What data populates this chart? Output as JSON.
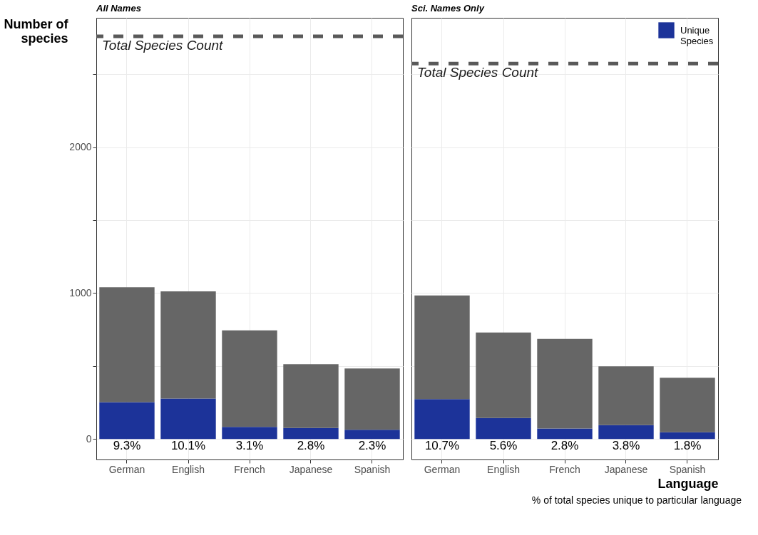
{
  "chart_data": [
    {
      "type": "bar",
      "title": "All Names",
      "ylabel": "Number of species",
      "categories": [
        "German",
        "English",
        "French",
        "Japanese",
        "Spanish"
      ],
      "stacked": true,
      "series": [
        {
          "color": "#1c3399",
          "values": [
            252,
            277,
            83,
            75,
            63
          ]
        },
        {
          "color": "#666666",
          "values": [
            788,
            735,
            661,
            437,
            420
          ]
        }
      ],
      "ylim": [
        -141,
        2887
      ],
      "yticks": [
        0,
        {
          "value": 500,
          "label": null
        },
        1000,
        {
          "value": 1500,
          "label": null
        },
        2000,
        {
          "value": 2500,
          "label": null
        }
      ],
      "ref_lines": [
        {
          "axis": "y",
          "value": 2760,
          "label": "Total Species Count",
          "color": "#595959",
          "line_style": "dashed"
        }
      ],
      "annotations": [
        {
          "text": "9.3%",
          "x": "German",
          "y": 0
        },
        {
          "text": "10.1%",
          "x": "English",
          "y": 0
        },
        {
          "text": "3.1%",
          "x": "French",
          "y": 0
        },
        {
          "text": "2.8%",
          "x": "Japanese",
          "y": 0
        },
        {
          "text": "2.3%",
          "x": "Spanish",
          "y": 0
        }
      ],
      "grid": true,
      "legend": false
    },
    {
      "type": "bar",
      "title": "Sci. Names Only",
      "xlabel": "Language",
      "categories": [
        "German",
        "English",
        "French",
        "Japanese",
        "Spanish"
      ],
      "stacked": true,
      "series": [
        {
          "name": "Unique Species",
          "color": "#1c3399",
          "values": [
            273,
            144,
            71,
            95,
            46
          ]
        },
        {
          "color": "#666666",
          "values": [
            711,
            585,
            615,
            402,
            374
          ]
        }
      ],
      "ylim": [
        -141,
        2887
      ],
      "yticks": [
        0,
        {
          "value": 500,
          "label": null
        },
        1000,
        {
          "value": 1500,
          "label": null
        },
        2000,
        {
          "value": 2500,
          "label": null
        }
      ],
      "ref_lines": [
        {
          "axis": "y",
          "value": 2573,
          "label": "Total Species Count",
          "color": "#595959",
          "line_style": "dashed"
        }
      ],
      "grid": true,
      "legend": "top right",
      "tick_labels": "x",
      "annotations": [
        {
          "text": "10.7%",
          "x": "German",
          "y": 0
        },
        {
          "text": "5.6%",
          "x": "English",
          "y": 0
        },
        {
          "text": "2.8%",
          "x": "French",
          "y": 0
        },
        {
          "text": "3.8%",
          "x": "Japanese",
          "y": 0
        },
        {
          "text": "1.8%",
          "x": "Spanish",
          "y": 0
        },
        "% of total species unique to particular language"
      ]
    }
  ]
}
